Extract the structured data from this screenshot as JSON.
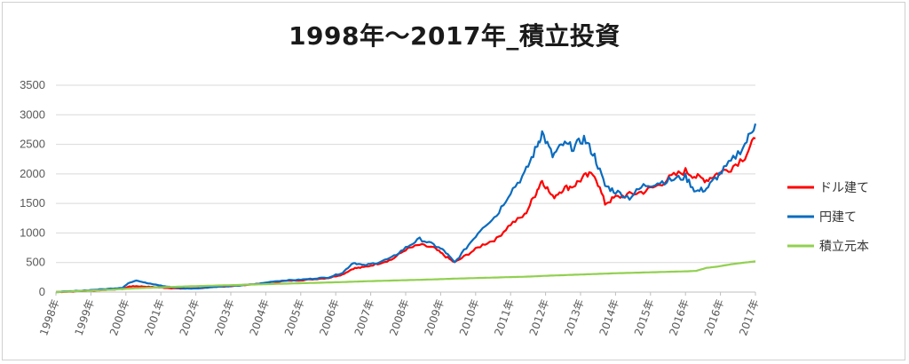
{
  "chart_data": {
    "type": "line",
    "title": "1998年～2017年_積立投資",
    "xlabel": "",
    "ylabel": "",
    "ylim": [
      0,
      3500
    ],
    "yticks": [
      "0",
      "500",
      "1000",
      "1500",
      "2000",
      "2500",
      "3000",
      "3500"
    ],
    "x_tick_labels": [
      "1998年",
      "1999年",
      "2000年",
      "2001年",
      "2002年",
      "2003年",
      "2004年",
      "2005年",
      "2006年",
      "2007年",
      "2008年",
      "2009年",
      "2010年",
      "2011年",
      "2012年",
      "2013年",
      "2014年",
      "2015年",
      "2016年",
      "2016年",
      "2017年"
    ],
    "grid": true,
    "legend_position": "right",
    "x": [
      1998.0,
      1998.5,
      1999.0,
      1999.5,
      1999.9,
      2000.1,
      2000.3,
      2000.6,
      2000.9,
      2001.2,
      2001.5,
      2001.8,
      2002.2,
      2002.6,
      2003.0,
      2003.4,
      2003.8,
      2004.2,
      2004.6,
      2005.0,
      2005.4,
      2005.8,
      2006.2,
      2006.5,
      2006.8,
      2007.2,
      2007.6,
      2008.0,
      2008.4,
      2008.8,
      2009.1,
      2009.4,
      2009.8,
      2010.2,
      2010.6,
      2011.0,
      2011.4,
      2011.7,
      2011.9,
      2012.2,
      2012.5,
      2012.8,
      2013.1,
      2013.4,
      2013.7,
      2014.0,
      2014.4,
      2014.8,
      2015.2,
      2015.6,
      2016.0,
      2016.3,
      2016.6,
      2016.9,
      2017.3,
      2017.7,
      2018.0
    ],
    "series": [
      {
        "name": "ドル建て",
        "color": "#ff0000",
        "values": [
          0,
          10,
          25,
          40,
          55,
          95,
          100,
          90,
          80,
          70,
          60,
          60,
          70,
          90,
          100,
          120,
          140,
          170,
          190,
          200,
          220,
          240,
          300,
          400,
          420,
          480,
          550,
          720,
          800,
          750,
          620,
          500,
          650,
          800,
          900,
          1150,
          1300,
          1650,
          1900,
          1600,
          1750,
          1800,
          1950,
          2000,
          1500,
          1600,
          1650,
          1700,
          1800,
          1950,
          2050,
          1950,
          1900,
          2000,
          2100,
          2300,
          2600
        ]
      },
      {
        "name": "円建て",
        "color": "#0a6cbf",
        "values": [
          0,
          15,
          35,
          55,
          75,
          160,
          200,
          150,
          120,
          90,
          70,
          60,
          70,
          90,
          100,
          120,
          140,
          180,
          200,
          210,
          230,
          250,
          330,
          500,
          450,
          500,
          580,
          750,
          900,
          800,
          700,
          500,
          800,
          1100,
          1300,
          1700,
          2000,
          2400,
          2700,
          2300,
          2500,
          2450,
          2600,
          2300,
          1800,
          1700,
          1600,
          1800,
          1850,
          1900,
          1950,
          1700,
          1750,
          1950,
          2200,
          2500,
          2850
        ]
      },
      {
        "name": "積立元本",
        "color": "#92d050",
        "values": [
          0,
          13,
          26,
          39,
          52,
          59,
          65,
          72,
          78,
          85,
          91,
          98,
          104,
          111,
          117,
          124,
          130,
          137,
          143,
          150,
          156,
          163,
          169,
          176,
          182,
          189,
          195,
          202,
          208,
          215,
          221,
          228,
          234,
          241,
          247,
          254,
          260,
          267,
          273,
          280,
          286,
          293,
          299,
          306,
          312,
          319,
          325,
          332,
          338,
          345,
          351,
          358,
          410,
          430,
          470,
          500,
          520
        ]
      }
    ]
  }
}
